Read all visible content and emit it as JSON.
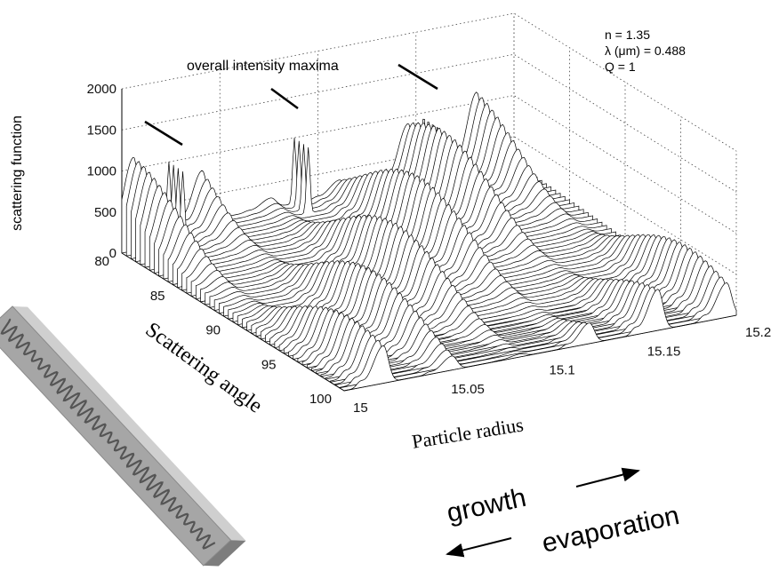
{
  "axes": {
    "z_label": "scattering function",
    "z_ticks": [
      "0",
      "500",
      "1000",
      "1500",
      "2000"
    ],
    "angle_label": "Scattering angle",
    "angle_ticks": [
      "80",
      "85",
      "90",
      "95",
      "100"
    ],
    "radius_label": "Particle radius",
    "radius_ticks": [
      "15",
      "15.05",
      "15.1",
      "15.15",
      "15.2"
    ]
  },
  "annotations": {
    "maxima": "overall intensity maxima",
    "params": [
      "n = 1.35",
      "λ (μm) = 0.488",
      "Q = 1"
    ]
  },
  "direction": {
    "growth": "growth",
    "evaporation": "evaporation"
  }
}
